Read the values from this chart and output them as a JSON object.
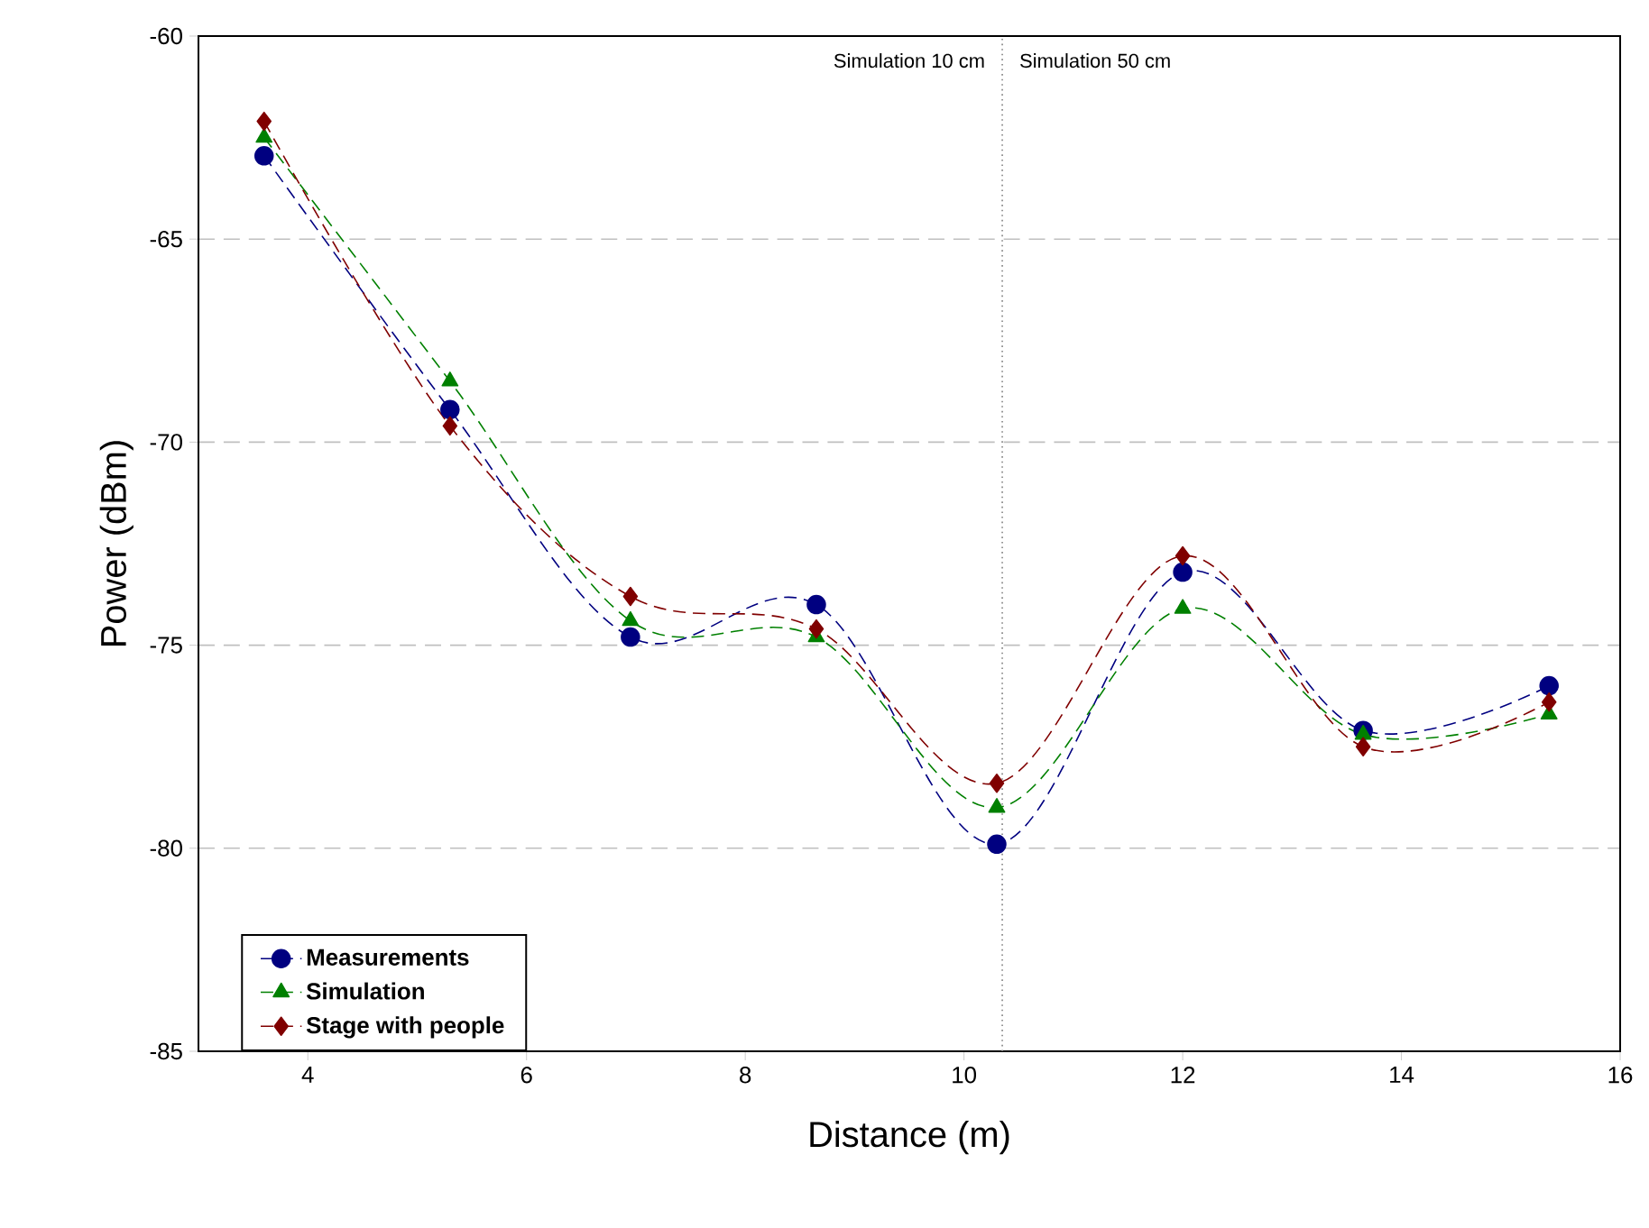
{
  "chart_data": {
    "type": "line",
    "xlabel": "Distance (m)",
    "ylabel": "Power (dBm)",
    "xlim": [
      3,
      16
    ],
    "ylim": [
      -85,
      -60
    ],
    "xticks": [
      4,
      6,
      8,
      10,
      12,
      14,
      16
    ],
    "yticks": [
      -85,
      -80,
      -75,
      -70,
      -65,
      -60
    ],
    "grid": "y",
    "legend": "bottom left",
    "line_style": "dashed",
    "x": [
      3.6,
      5.3,
      6.95,
      8.65,
      10.3,
      12,
      13.65,
      15.35
    ],
    "series": [
      {
        "name": "Measurements",
        "color": "#000080",
        "marker": "circle",
        "values": [
          -62.95,
          -69.2,
          -74.8,
          -74.0,
          -79.9,
          -73.2,
          -77.1,
          -76.0
        ]
      },
      {
        "name": "Simulation",
        "color": "#008000",
        "marker": "triangle",
        "values": [
          -62.5,
          -68.5,
          -74.4,
          -74.8,
          -79.0,
          -74.1,
          -77.2,
          -76.7
        ]
      },
      {
        "name": "Stage with people",
        "color": "#800000",
        "marker": "diamond",
        "values": [
          -62.1,
          -69.6,
          -73.8,
          -74.6,
          -78.4,
          -72.8,
          -77.5,
          -76.4
        ]
      }
    ],
    "ref_lines": [
      {
        "axis": "x",
        "value": 10.35,
        "line_style": "dotted",
        "color": "#808080"
      }
    ],
    "annotations": [
      "Simulation 10 cm",
      "Simulation 50 cm"
    ]
  }
}
